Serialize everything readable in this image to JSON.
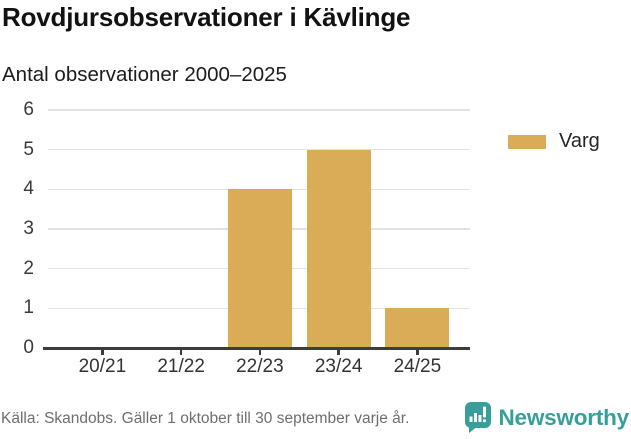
{
  "header": {
    "title": "Rovdjursobservationer i Kävlinge",
    "subtitle": "Antal observationer 2000–2025"
  },
  "chart_data": {
    "type": "bar",
    "title": "Rovdjursobservationer i Kävlinge",
    "subtitle": "Antal observationer 2000–2025",
    "categories": [
      "20/21",
      "21/22",
      "22/23",
      "23/24",
      "24/25"
    ],
    "series": [
      {
        "name": "Varg",
        "color": "#daac57",
        "values": [
          0,
          0,
          4,
          5,
          1
        ]
      }
    ],
    "xlabel": "",
    "ylabel": "",
    "ylim": [
      0,
      6
    ],
    "yticks": [
      0,
      1,
      2,
      3,
      4,
      5,
      6
    ],
    "grid": true,
    "legend_position": "right"
  },
  "legend": {
    "items": [
      {
        "label": "Varg",
        "color": "#daac57"
      }
    ]
  },
  "footer": {
    "source": "Källa: Skandobs. Gäller 1 oktober till 30 september varje år.",
    "brand": "Newsworthy",
    "brand_color": "#379f9a",
    "logo_icon": "speech-bubble-bar-chart-icon"
  }
}
